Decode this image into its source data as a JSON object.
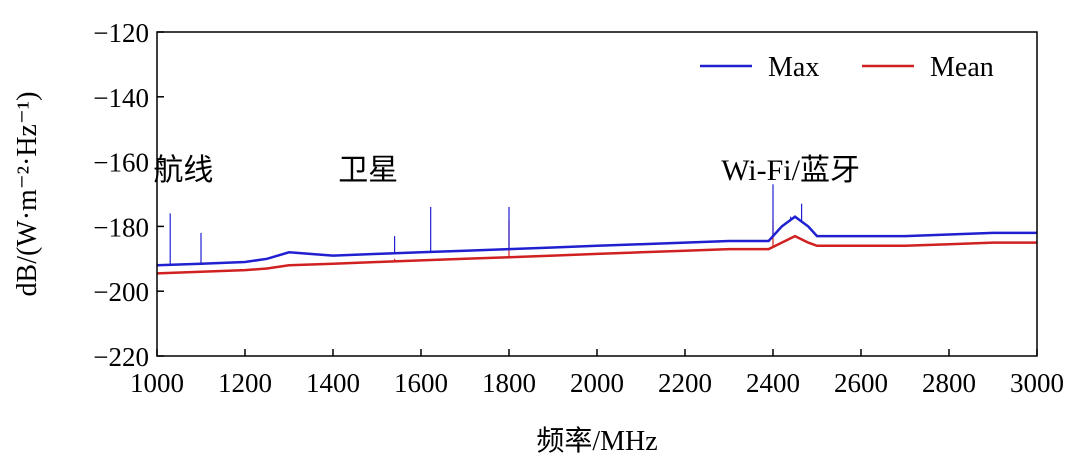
{
  "chart_data": {
    "type": "line",
    "xlabel": "频率/MHz",
    "ylabel": "dB/(W·m⁻²·Hz⁻¹)",
    "xlim": [
      1000,
      3000
    ],
    "ylim": [
      -220,
      -120
    ],
    "xticks": [
      1000,
      1200,
      1400,
      1600,
      1800,
      2000,
      2200,
      2400,
      2600,
      2800,
      3000
    ],
    "yticks": [
      -120,
      -140,
      -160,
      -180,
      -200,
      -220
    ],
    "ytick_labels": [
      "−120",
      "−140",
      "−160",
      "−180",
      "−200",
      "−220"
    ],
    "grid": false,
    "legend_position": "top-right",
    "annotations": [
      {
        "text": "航线",
        "x": 1060,
        "y": -162
      },
      {
        "text": "卫星",
        "x": 1480,
        "y": -162
      },
      {
        "text": "Wi-Fi/蓝牙",
        "x": 2440,
        "y": -162
      }
    ],
    "series": [
      {
        "name": "Max",
        "color": "#2020d0",
        "x": [
          1000,
          1100,
          1200,
          1250,
          1300,
          1400,
          1500,
          1600,
          1700,
          1800,
          1900,
          2000,
          2100,
          2200,
          2300,
          2390,
          2420,
          2450,
          2480,
          2500,
          2600,
          2700,
          2800,
          2900,
          3000
        ],
        "y": [
          -192,
          -191.5,
          -191,
          -190,
          -188,
          -189,
          -188.5,
          -188,
          -187.5,
          -187,
          -186.5,
          -186,
          -185.5,
          -185,
          -184.5,
          -184.5,
          -180,
          -177,
          -180,
          -183,
          -183,
          -183,
          -182.5,
          -182,
          -182
        ],
        "spikes": [
          {
            "x": 1030,
            "y": -176
          },
          {
            "x": 1100,
            "y": -182
          },
          {
            "x": 1540,
            "y": -183
          },
          {
            "x": 1622,
            "y": -174
          },
          {
            "x": 1800,
            "y": -174
          },
          {
            "x": 2400,
            "y": -167
          },
          {
            "x": 2440,
            "y": -177
          },
          {
            "x": 2465,
            "y": -173
          }
        ]
      },
      {
        "name": "Mean",
        "color": "#d02020",
        "x": [
          1000,
          1100,
          1200,
          1250,
          1300,
          1400,
          1500,
          1600,
          1700,
          1800,
          1900,
          2000,
          2100,
          2200,
          2300,
          2390,
          2420,
          2450,
          2480,
          2500,
          2600,
          2700,
          2800,
          2900,
          3000
        ],
        "y": [
          -194.5,
          -194,
          -193.5,
          -193,
          -192,
          -191.5,
          -191,
          -190.5,
          -190,
          -189.5,
          -189,
          -188.5,
          -188,
          -187.5,
          -187,
          -187,
          -185,
          -183,
          -185,
          -186,
          -186,
          -186,
          -185.5,
          -185,
          -185
        ],
        "spikes": [
          {
            "x": 1540,
            "y": -190
          },
          {
            "x": 1800,
            "y": -178
          },
          {
            "x": 2400,
            "y": -178
          }
        ]
      }
    ]
  }
}
